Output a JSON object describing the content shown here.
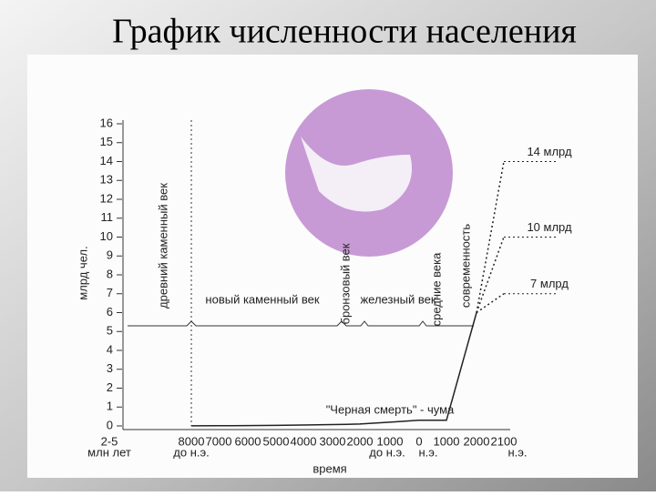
{
  "chart_data": {
    "type": "line",
    "title": "График численности населения",
    "ylabel": "млрд чел.",
    "xlabel": "время",
    "categories": [
      "2-5",
      "8000",
      "7000",
      "6000",
      "5000",
      "4000",
      "3000",
      "2000",
      "1000",
      "0",
      "1000",
      "2000",
      "2100"
    ],
    "x_sublabels": [
      "млн лет",
      "до н.э.",
      "до н.э.",
      "н.э.",
      "н.э."
    ],
    "ylim": [
      0,
      16
    ],
    "yticks": [
      0,
      1,
      2,
      3,
      4,
      5,
      6,
      7,
      8,
      9,
      10,
      11,
      12,
      13,
      14,
      15,
      16
    ],
    "grid": false,
    "annotations": [
      "древний каменный век",
      "новый каменный век",
      "бронзовый век",
      "железный век",
      "средние века",
      "современность",
      "\"Черная смерть\" - чума"
    ],
    "series": [
      {
        "color": "#222222",
        "values": [
          null,
          0.005,
          0.01,
          0.02,
          0.03,
          0.05,
          0.07,
          0.1,
          0.2,
          0.3,
          0.3,
          6,
          null
        ]
      },
      {
        "color": "#222222",
        "dashed": true,
        "values": [
          null,
          null,
          null,
          null,
          null,
          null,
          null,
          null,
          null,
          null,
          null,
          6,
          14
        ],
        "value_labels": [
          null,
          null,
          null,
          null,
          null,
          null,
          null,
          null,
          null,
          null,
          null,
          null,
          "14 млрд"
        ]
      },
      {
        "color": "#222222",
        "dashed": true,
        "values": [
          null,
          null,
          null,
          null,
          null,
          null,
          null,
          null,
          null,
          null,
          null,
          6,
          10
        ],
        "value_labels": [
          null,
          null,
          null,
          null,
          null,
          null,
          null,
          null,
          null,
          null,
          null,
          null,
          "10 млрд"
        ]
      },
      {
        "color": "#222222",
        "dashed": true,
        "values": [
          null,
          null,
          null,
          null,
          null,
          null,
          null,
          null,
          null,
          null,
          null,
          6,
          7
        ],
        "value_labels": [
          null,
          null,
          null,
          null,
          null,
          null,
          null,
          null,
          null,
          null,
          null,
          null,
          "7 млрд"
        ]
      }
    ]
  }
}
